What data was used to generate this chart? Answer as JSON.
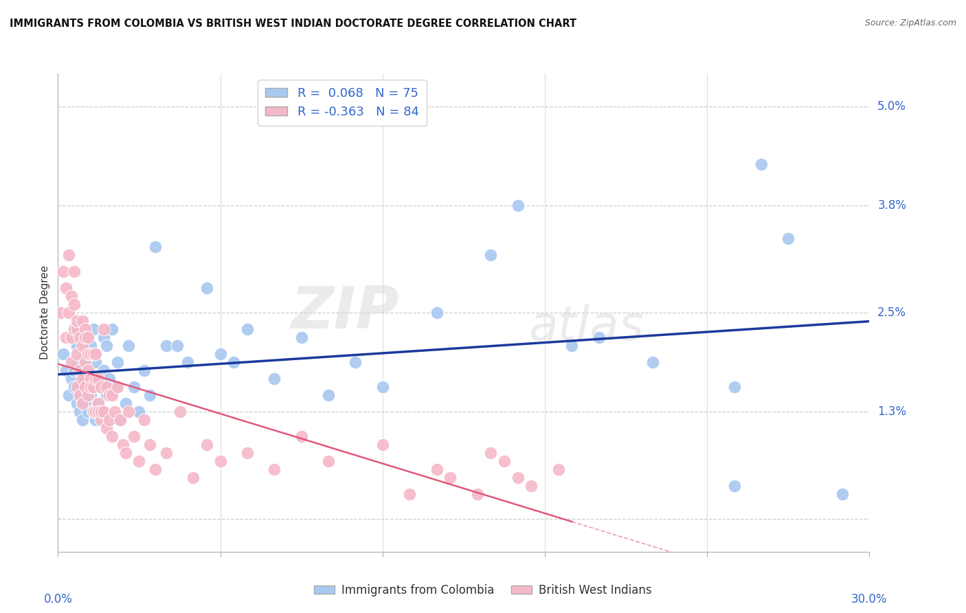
{
  "title": "IMMIGRANTS FROM COLOMBIA VS BRITISH WEST INDIAN DOCTORATE DEGREE CORRELATION CHART",
  "source": "Source: ZipAtlas.com",
  "ylabel": "Doctorate Degree",
  "colombia_color": "#a8c8f0",
  "bwi_color": "#f5b8c8",
  "colombia_R": 0.068,
  "colombia_N": 75,
  "bwi_R": -0.363,
  "bwi_N": 84,
  "colombia_line_color": "#1a3a9c",
  "bwi_line_color": "#e05878",
  "background_color": "#ffffff",
  "grid_color": "#cccccc",
  "watermark_zip": "ZIP",
  "watermark_atlas": "atlas",
  "legend_label_colombia": "Immigrants from Colombia",
  "legend_label_bwi": "British West Indians",
  "xlim": [
    0.0,
    0.3
  ],
  "ylim": [
    -0.004,
    0.054
  ],
  "ytick_values": [
    0.0,
    0.013,
    0.025,
    0.038,
    0.05
  ],
  "ytick_labels": [
    "",
    "1.3%",
    "2.5%",
    "3.8%",
    "5.0%"
  ],
  "xtick_positions": [
    0.0,
    0.06,
    0.12,
    0.18,
    0.24,
    0.3
  ],
  "colombia_scatter_x": [
    0.002,
    0.003,
    0.004,
    0.005,
    0.005,
    0.006,
    0.006,
    0.006,
    0.007,
    0.007,
    0.007,
    0.008,
    0.008,
    0.008,
    0.009,
    0.009,
    0.009,
    0.01,
    0.01,
    0.01,
    0.01,
    0.011,
    0.011,
    0.011,
    0.012,
    0.012,
    0.012,
    0.013,
    0.013,
    0.013,
    0.014,
    0.014,
    0.015,
    0.015,
    0.016,
    0.016,
    0.017,
    0.017,
    0.018,
    0.018,
    0.019,
    0.02,
    0.021,
    0.022,
    0.023,
    0.025,
    0.026,
    0.028,
    0.03,
    0.032,
    0.034,
    0.036,
    0.04,
    0.044,
    0.048,
    0.055,
    0.06,
    0.065,
    0.07,
    0.08,
    0.09,
    0.1,
    0.11,
    0.12,
    0.14,
    0.16,
    0.17,
    0.19,
    0.2,
    0.22,
    0.25,
    0.26,
    0.27,
    0.25,
    0.29
  ],
  "colombia_scatter_y": [
    0.02,
    0.018,
    0.015,
    0.022,
    0.017,
    0.018,
    0.016,
    0.023,
    0.014,
    0.019,
    0.021,
    0.013,
    0.016,
    0.015,
    0.014,
    0.019,
    0.012,
    0.016,
    0.014,
    0.017,
    0.021,
    0.013,
    0.018,
    0.022,
    0.015,
    0.021,
    0.017,
    0.023,
    0.013,
    0.016,
    0.019,
    0.012,
    0.016,
    0.014,
    0.017,
    0.013,
    0.018,
    0.022,
    0.015,
    0.021,
    0.017,
    0.023,
    0.016,
    0.019,
    0.012,
    0.014,
    0.021,
    0.016,
    0.013,
    0.018,
    0.015,
    0.033,
    0.021,
    0.021,
    0.019,
    0.028,
    0.02,
    0.019,
    0.023,
    0.017,
    0.022,
    0.015,
    0.019,
    0.016,
    0.025,
    0.032,
    0.038,
    0.021,
    0.022,
    0.019,
    0.016,
    0.043,
    0.034,
    0.004,
    0.003
  ],
  "bwi_scatter_x": [
    0.001,
    0.002,
    0.003,
    0.003,
    0.004,
    0.004,
    0.005,
    0.005,
    0.005,
    0.006,
    0.006,
    0.006,
    0.007,
    0.007,
    0.007,
    0.007,
    0.008,
    0.008,
    0.008,
    0.009,
    0.009,
    0.009,
    0.009,
    0.01,
    0.01,
    0.01,
    0.01,
    0.011,
    0.011,
    0.011,
    0.011,
    0.012,
    0.012,
    0.012,
    0.013,
    0.013,
    0.013,
    0.014,
    0.014,
    0.014,
    0.015,
    0.015,
    0.015,
    0.016,
    0.016,
    0.016,
    0.017,
    0.017,
    0.018,
    0.018,
    0.019,
    0.019,
    0.02,
    0.02,
    0.021,
    0.022,
    0.023,
    0.024,
    0.025,
    0.026,
    0.028,
    0.03,
    0.032,
    0.034,
    0.036,
    0.04,
    0.045,
    0.05,
    0.055,
    0.06,
    0.07,
    0.08,
    0.09,
    0.1,
    0.12,
    0.13,
    0.14,
    0.16,
    0.17,
    0.165,
    0.175,
    0.185,
    0.155,
    0.145
  ],
  "bwi_scatter_y": [
    0.025,
    0.03,
    0.028,
    0.022,
    0.025,
    0.032,
    0.022,
    0.019,
    0.027,
    0.03,
    0.026,
    0.023,
    0.023,
    0.02,
    0.016,
    0.024,
    0.022,
    0.018,
    0.015,
    0.021,
    0.017,
    0.014,
    0.024,
    0.023,
    0.019,
    0.016,
    0.022,
    0.022,
    0.018,
    0.015,
    0.02,
    0.02,
    0.017,
    0.016,
    0.016,
    0.013,
    0.02,
    0.02,
    0.013,
    0.017,
    0.017,
    0.014,
    0.013,
    0.016,
    0.012,
    0.013,
    0.023,
    0.013,
    0.011,
    0.016,
    0.012,
    0.015,
    0.015,
    0.01,
    0.013,
    0.016,
    0.012,
    0.009,
    0.008,
    0.013,
    0.01,
    0.007,
    0.012,
    0.009,
    0.006,
    0.008,
    0.013,
    0.005,
    0.009,
    0.007,
    0.008,
    0.006,
    0.01,
    0.007,
    0.009,
    0.003,
    0.006,
    0.008,
    0.005,
    0.007,
    0.004,
    0.006,
    0.003,
    0.005
  ]
}
